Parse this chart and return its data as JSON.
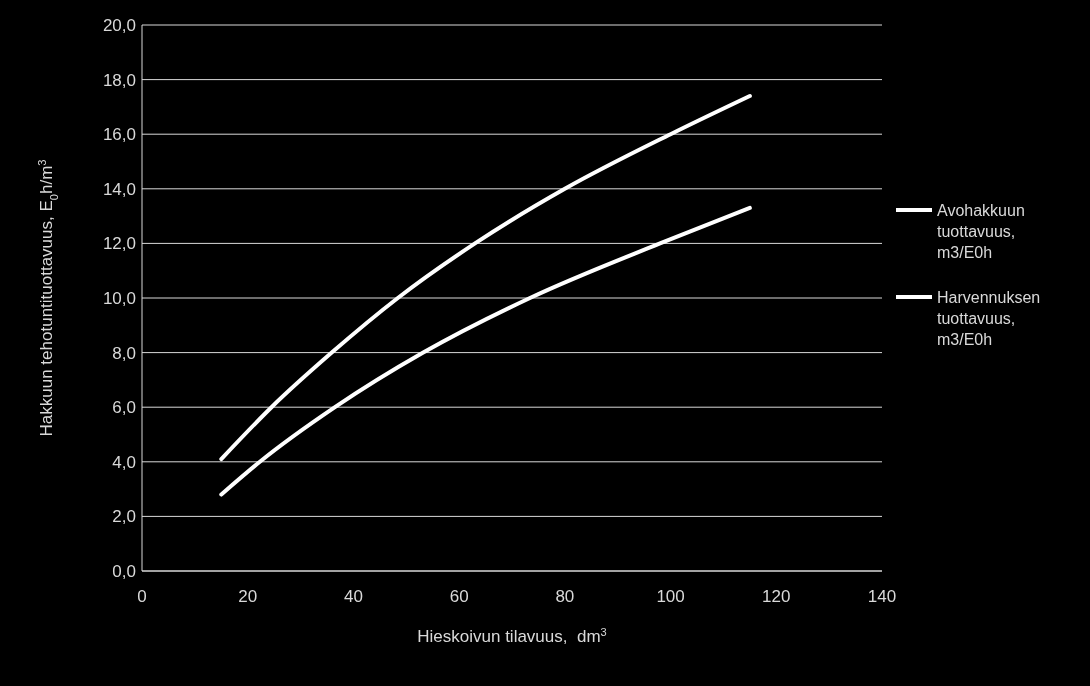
{
  "chart_data": {
    "type": "line",
    "xlabel": "Hieskoivun tilavuus,  dm$^{3}$",
    "ylabel": "Hakkuun tehotuntituottavuus, E$_{0}$h/m$^{3}$",
    "xlim": [
      0,
      140
    ],
    "xticks": [
      0,
      20,
      40,
      60,
      80,
      100,
      120,
      140
    ],
    "ylim": [
      0,
      20
    ],
    "yticks": [
      {
        "value": 0,
        "label": "0,0"
      },
      {
        "value": 2,
        "label": "2,0"
      },
      {
        "value": 4,
        "label": "4,0"
      },
      {
        "value": 6,
        "label": "6,0"
      },
      {
        "value": 8,
        "label": "8,0"
      },
      {
        "value": 10,
        "label": "10,0"
      },
      {
        "value": 12,
        "label": "12,0"
      },
      {
        "value": 14,
        "label": "14,0"
      },
      {
        "value": 16,
        "label": "16,0"
      },
      {
        "value": 18,
        "label": "18,0"
      },
      {
        "value": 20,
        "label": "20,0"
      }
    ],
    "grid": "y",
    "legend": "right",
    "marker": "none",
    "line_style": "solid",
    "series": [
      {
        "name": "Avohakkuun tuottavuus, m3/E0h",
        "color": "#ffffff",
        "x": [
          15,
          24.5,
          35.9,
          48.4,
          63,
          80,
          100,
          115
        ],
        "values": [
          4.1,
          6,
          8,
          10,
          12,
          14,
          16,
          17.4
        ]
      },
      {
        "name": "Harvennuksen tuottavuus, m3/E0h",
        "color": "#ffffff",
        "x": [
          15,
          22.3,
          36.5,
          53.2,
          73.4,
          98,
          115
        ],
        "values": [
          2.8,
          4,
          6,
          8,
          10,
          12,
          13.3
        ]
      }
    ]
  }
}
